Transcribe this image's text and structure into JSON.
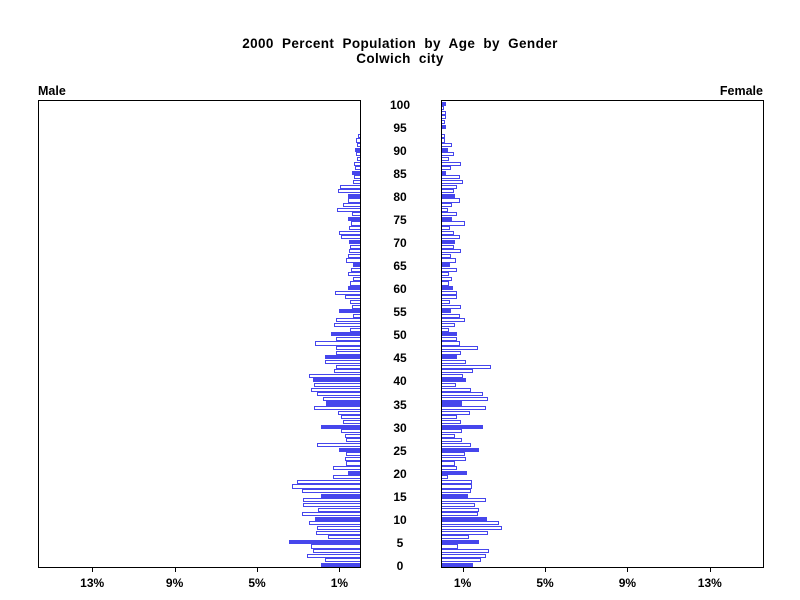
{
  "ui": {
    "title_line1": "2000 Percent Population by Age by Gender",
    "title_line2": "Colwich city",
    "male_label": "Male",
    "female_label": "Female"
  },
  "chart_data": {
    "type": "bar",
    "subtype": "population-pyramid",
    "title": "2000 Percent Population by Age by Gender",
    "subtitle": "Colwich city",
    "left_series_label": "Male",
    "right_series_label": "Female",
    "age_axis": {
      "min": 0,
      "max": 100,
      "tick_step": 5,
      "tick_labels": [
        "0",
        "5",
        "10",
        "15",
        "20",
        "25",
        "30",
        "35",
        "40",
        "45",
        "50",
        "55",
        "60",
        "65",
        "70",
        "75",
        "80",
        "85",
        "90",
        "95",
        "100"
      ]
    },
    "percent_axis": {
      "tick_values": [
        1,
        5,
        9,
        13
      ],
      "tick_labels": [
        "1%",
        "5%",
        "9%",
        "13%"
      ],
      "max_percent": 15.9,
      "note": "mirrored: increases leftward on Male panel, rightward on Female panel"
    },
    "bar_style": {
      "single_year_bars": true,
      "solid_fill_on_ages_multiple_of": 5,
      "fill_solid": "#4646ec",
      "fill_open": "#ffffff",
      "outline": "#4646ec",
      "frame_color": "#000000"
    },
    "series": [
      {
        "name": "Male",
        "side": "left",
        "ages": "0-100 ascending",
        "values_percent": [
          1.9,
          1.7,
          2.55,
          2.3,
          2.4,
          3.45,
          1.55,
          2.15,
          2.1,
          2.5,
          2.2,
          2.8,
          2.05,
          2.75,
          2.75,
          1.9,
          2.8,
          3.3,
          3.05,
          1.3,
          0.6,
          1.3,
          0.7,
          0.75,
          0.7,
          1.0,
          2.1,
          0.7,
          0.75,
          0.9,
          1.9,
          0.85,
          0.9,
          1.05,
          2.25,
          1.65,
          1.8,
          2.1,
          2.4,
          2.25,
          2.3,
          2.5,
          1.25,
          1.15,
          1.7,
          1.7,
          1.15,
          1.15,
          2.2,
          1.15,
          1.4,
          0.5,
          1.25,
          1.15,
          0.35,
          1.0,
          0.4,
          0.5,
          0.75,
          1.2,
          0.6,
          0.5,
          0.35,
          0.6,
          0.45,
          0.35,
          0.7,
          0.6,
          0.55,
          0.5,
          0.55,
          0.9,
          1.0,
          0.55,
          0.45,
          0.6,
          0.4,
          1.1,
          0.85,
          0.6,
          0.6,
          1.05,
          0.95,
          0.35,
          0.3,
          0.4,
          0.25,
          0.3,
          0.15,
          0.2,
          0.25,
          0.15,
          0.2,
          0.1,
          0,
          0,
          0,
          0,
          0,
          0,
          0
        ]
      },
      {
        "name": "Female",
        "side": "right",
        "ages": "0-100 ascending",
        "values_percent": [
          1.5,
          1.9,
          2.15,
          2.3,
          0.8,
          1.8,
          1.3,
          2.25,
          2.9,
          2.75,
          2.2,
          1.75,
          1.8,
          1.6,
          2.15,
          1.25,
          1.4,
          1.45,
          1.45,
          0.3,
          1.2,
          0.75,
          0.65,
          1.15,
          1.1,
          1.8,
          1.4,
          0.95,
          0.65,
          0.95,
          2.0,
          0.9,
          0.75,
          1.35,
          2.15,
          0.95,
          2.25,
          2.0,
          1.4,
          0.7,
          1.15,
          1.0,
          1.5,
          2.4,
          1.15,
          0.75,
          0.9,
          1.75,
          0.85,
          0.75,
          0.75,
          0.35,
          0.65,
          1.1,
          0.85,
          0.45,
          0.9,
          0.4,
          0.75,
          0.75,
          0.55,
          0.35,
          0.5,
          0.35,
          0.75,
          0.4,
          0.7,
          0.45,
          0.9,
          0.6,
          0.65,
          0.85,
          0.6,
          0.4,
          1.1,
          0.5,
          0.75,
          0.3,
          0.5,
          0.85,
          0.65,
          0.6,
          0.75,
          1.0,
          0.85,
          0.2,
          0.45,
          0.9,
          0.33,
          0.58,
          0.3,
          0.5,
          0.15,
          0.13,
          0,
          0.17,
          0.13,
          0.17,
          0.17,
          0.1,
          0.2
        ]
      }
    ]
  }
}
